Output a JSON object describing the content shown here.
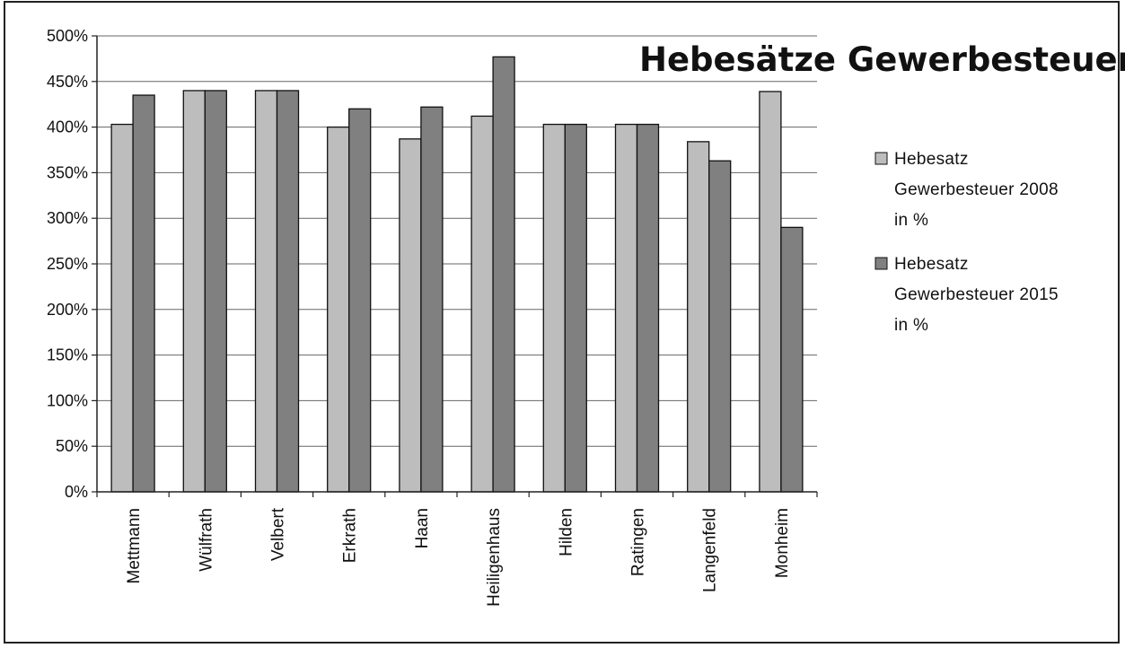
{
  "chart_data": {
    "type": "bar",
    "title": "Hebesätze Gewerbesteuer",
    "categories": [
      "Mettmann",
      "Wülfrath",
      "Velbert",
      "Erkrath",
      "Haan",
      "Heiligenhaus",
      "Hilden",
      "Ratingen",
      "Langenfeld",
      "Monheim"
    ],
    "series": [
      {
        "name": "Hebesatz Gewerbesteuer 2008 in %",
        "name_lines": [
          "Hebesatz",
          "Gewerbesteuer 2008",
          "in %"
        ],
        "color": "#bdbdbd",
        "values": [
          403,
          440,
          440,
          400,
          387,
          412,
          403,
          403,
          384,
          439
        ]
      },
      {
        "name": "Hebesatz Gewerbesteuer 2015 in %",
        "name_lines": [
          "Hebesatz",
          "Gewerbesteuer 2015",
          "in %"
        ],
        "color": "#808080",
        "values": [
          435,
          440,
          440,
          420,
          422,
          477,
          403,
          403,
          363,
          290
        ]
      }
    ],
    "yticks": [
      "0%",
      "50%",
      "100%",
      "150%",
      "200%",
      "250%",
      "300%",
      "350%",
      "400%",
      "450%",
      "500%"
    ],
    "ylim": [
      0,
      500
    ],
    "grid": true,
    "legend_position": "right",
    "xlabel": "",
    "ylabel": ""
  }
}
